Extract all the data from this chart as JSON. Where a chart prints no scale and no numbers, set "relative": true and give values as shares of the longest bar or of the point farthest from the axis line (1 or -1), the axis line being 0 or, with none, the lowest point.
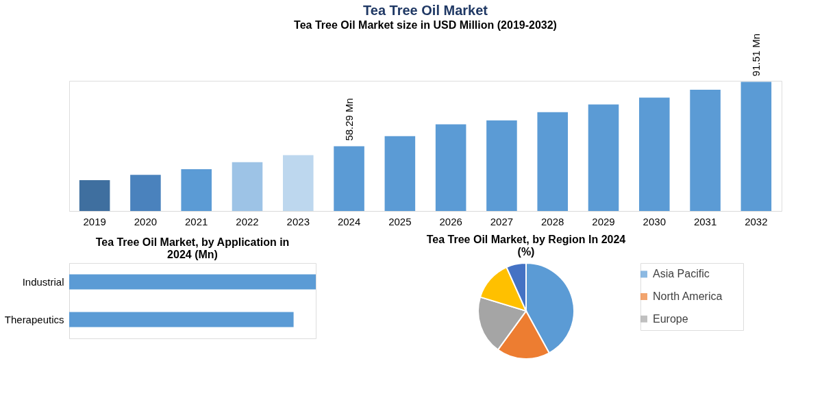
{
  "chart_data": [
    {
      "type": "bar",
      "title": "Tea Tree Oil Market",
      "subtitle": "Tea Tree Oil Market size in USD Million (2019-2032)",
      "categories": [
        "2019",
        "2020",
        "2021",
        "2022",
        "2023",
        "2024",
        "2025",
        "2026",
        "2027",
        "2028",
        "2029",
        "2030",
        "2031",
        "2032"
      ],
      "values": [
        40.9,
        43.6,
        46.5,
        50.1,
        53.7,
        58.29,
        63.5,
        69.6,
        71.6,
        75.9,
        79.8,
        83.4,
        87.4,
        91.51
      ],
      "colors": [
        "#3f6f9f",
        "#4a82bd",
        "#5b9bd5",
        "#9dc3e6",
        "#bdd7ee",
        "#5b9bd5",
        "#5b9bd5",
        "#5b9bd5",
        "#5b9bd5",
        "#5b9bd5",
        "#5b9bd5",
        "#5b9bd5",
        "#5b9bd5",
        "#5b9bd5"
      ],
      "value_labels": [
        null,
        null,
        null,
        null,
        null,
        "58.29 Mn",
        null,
        null,
        null,
        null,
        null,
        null,
        null,
        "91.51 Mn"
      ],
      "ylim": [
        25,
        92
      ],
      "tick_labels": "x"
    },
    {
      "type": "bar",
      "orientation": "horizontal",
      "relative": true,
      "title": "Tea Tree Oil Market, by Application in 2024 (Mn)",
      "categories": [
        "Industrial",
        "Therapeutics"
      ],
      "values": [
        1,
        0.91
      ],
      "color": "#5b9bd5"
    },
    {
      "type": "pie",
      "title": "Tea Tree Oil Market, by Region In 2024 (%)",
      "categories": [
        "Asia Pacific",
        "North America",
        "Europe",
        null,
        null
      ],
      "values": [
        42,
        18,
        19.7,
        13.6,
        6.7
      ],
      "colors": [
        "#5b9bd5",
        "#ed7d31",
        "#a5a5a5",
        "#ffc000",
        "#4472c4"
      ],
      "legend": "right"
    }
  ]
}
